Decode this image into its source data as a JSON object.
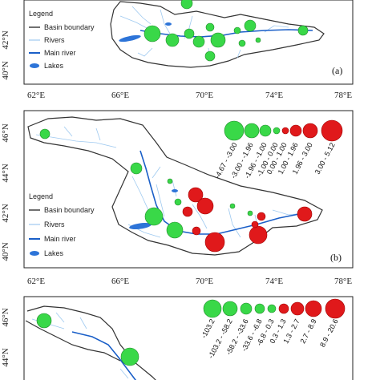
{
  "colors": {
    "decrease": "#39d848",
    "increase": "#e0191b",
    "increase_stroke": "#a00000",
    "river": "#9ec9f0",
    "main_river": "#1a5fc8",
    "lake": "#2d74d8",
    "boundary": "#333333"
  },
  "legend": {
    "title": "Legend",
    "items": [
      {
        "icon": "basin-boundary-line",
        "label": "Basin boundary"
      },
      {
        "icon": "rivers-line",
        "label": "Rivers"
      },
      {
        "icon": "main-river-line",
        "label": "Main river"
      },
      {
        "icon": "lakes-ellipse",
        "label": "Lakes"
      }
    ]
  },
  "axes": {
    "x_ticks": [
      "62°E",
      "66°E",
      "70°E",
      "74°E",
      "78°E"
    ],
    "panel_a_y_ticks": [
      "42°N",
      "40°N"
    ],
    "panel_b_y_ticks": [
      "46°N",
      "44°N",
      "42°N",
      "40°N"
    ],
    "panel_c_y_ticks": [
      "46°N",
      "44°N"
    ]
  },
  "panels": [
    {
      "id": "a",
      "label": "(a)"
    },
    {
      "id": "b",
      "label": "(b)",
      "classes": [
        "-4.67 - -3.00",
        "-3.00 - -1.96",
        "-1.96 - -1.00",
        "-1.00 - 0.00",
        "0.00 - 1.00",
        "1.00 - 1.96",
        "1.96 - 3.00",
        "3.00 - 5.12"
      ]
    },
    {
      "id": "c",
      "classes": [
        "-103.2",
        "-103.2 - -58.2",
        "-58.2 - -33.6",
        "-33.6 - -6.8",
        "-6.8 - 0.3",
        "0.3 - 1.3",
        "1.3 - 2.7",
        "2.7 - 8.9",
        "8.9 - 20.6"
      ]
    }
  ]
}
